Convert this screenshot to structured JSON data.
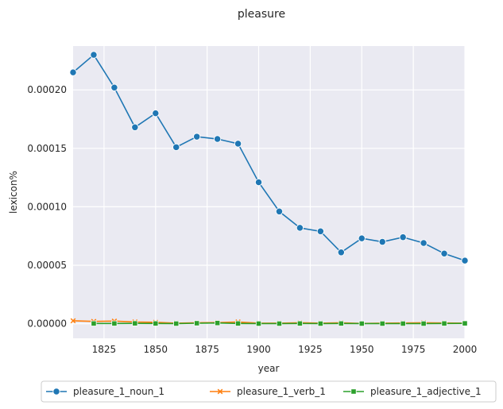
{
  "chart_data": {
    "type": "line",
    "title": "pleasure",
    "xlabel": "year",
    "ylabel": "lexicon%",
    "xlim": [
      1810,
      2000
    ],
    "ylim": [
      -1.25e-05,
      0.0002375
    ],
    "xticks": [
      1825,
      1850,
      1875,
      1900,
      1925,
      1950,
      1975,
      2000
    ],
    "xtick_labels": [
      "1825",
      "1850",
      "1875",
      "1900",
      "1925",
      "1950",
      "1975",
      "2000"
    ],
    "yticks": [
      0,
      5e-05,
      0.0001,
      0.00015,
      0.0002
    ],
    "ytick_labels": [
      "0.00000",
      "0.00005",
      "0.00010",
      "0.00015",
      "0.00020"
    ],
    "grid": true,
    "legend_position": "bottom-center",
    "series": [
      {
        "name": "pleasure_1_noun_1",
        "color": "#1f77b4",
        "marker": "circle",
        "x": [
          1810,
          1820,
          1830,
          1840,
          1850,
          1860,
          1870,
          1880,
          1890,
          1900,
          1910,
          1920,
          1930,
          1940,
          1950,
          1960,
          1970,
          1980,
          1990,
          2000
        ],
        "y": [
          0.000215,
          0.00023,
          0.000202,
          0.000168,
          0.00018,
          0.000151,
          0.00016,
          0.000158,
          0.000154,
          0.000121,
          9.6e-05,
          8.2e-05,
          7.9e-05,
          6.1e-05,
          7.3e-05,
          7e-05,
          7.4e-05,
          6.9e-05,
          6e-05,
          5.4e-05
        ]
      },
      {
        "name": "pleasure_1_verb_1",
        "color": "#ff7f0e",
        "marker": "x",
        "x": [
          1810,
          1820,
          1830,
          1840,
          1850,
          1860,
          1870,
          1880,
          1890,
          1900,
          1910,
          1920,
          1930,
          1940,
          1950,
          1960,
          1970,
          1980,
          1990,
          2000
        ],
        "y": [
          2.5e-06,
          2e-06,
          2.2e-06,
          1.5e-06,
          1.2e-06,
          5e-07,
          8e-07,
          1e-06,
          1.5e-06,
          5e-07,
          5e-07,
          8e-07,
          5e-07,
          8e-07,
          2e-07,
          5e-07,
          6e-07,
          8e-07,
          6e-07,
          5e-07
        ]
      },
      {
        "name": "pleasure_1_adjective_1",
        "color": "#2ca02c",
        "marker": "square",
        "x": [
          1820,
          1830,
          1840,
          1850,
          1860,
          1870,
          1880,
          1890,
          1900,
          1910,
          1920,
          1930,
          1940,
          1950,
          1960,
          1970,
          1980,
          1990,
          2000
        ],
        "y": [
          2e-07,
          2e-07,
          3e-07,
          2e-07,
          1e-07,
          4e-07,
          6e-07,
          2e-07,
          1e-07,
          1e-07,
          2e-07,
          1e-07,
          2e-07,
          1e-07,
          1e-07,
          1e-07,
          1e-07,
          2e-07,
          3e-07
        ]
      }
    ]
  }
}
